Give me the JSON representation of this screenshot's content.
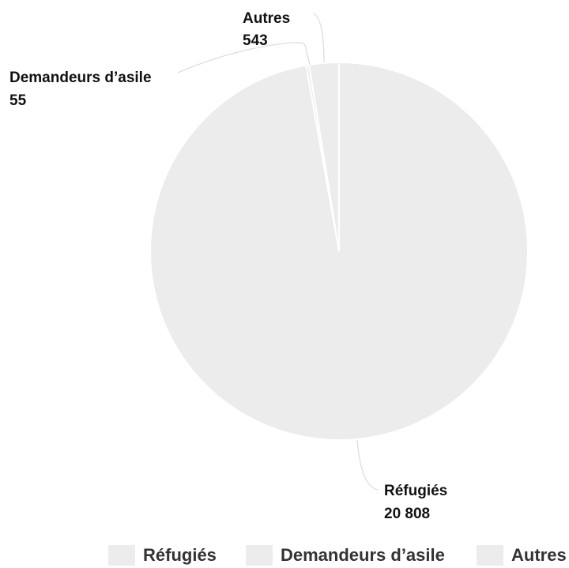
{
  "chart_data": {
    "type": "pie",
    "slices": [
      {
        "label": "Réfugiés",
        "value": 20808,
        "display_value": "20 808",
        "color": "#ececec"
      },
      {
        "label": "Demandeurs d’asile",
        "value": 55,
        "display_value": "55",
        "color": "#ececec"
      },
      {
        "label": "Autres",
        "value": 543,
        "display_value": "543",
        "color": "#ececec"
      }
    ],
    "legend": {
      "position": "bottom",
      "items": [
        "Réfugiés",
        "Demandeurs d’asile",
        "Autres"
      ]
    }
  }
}
